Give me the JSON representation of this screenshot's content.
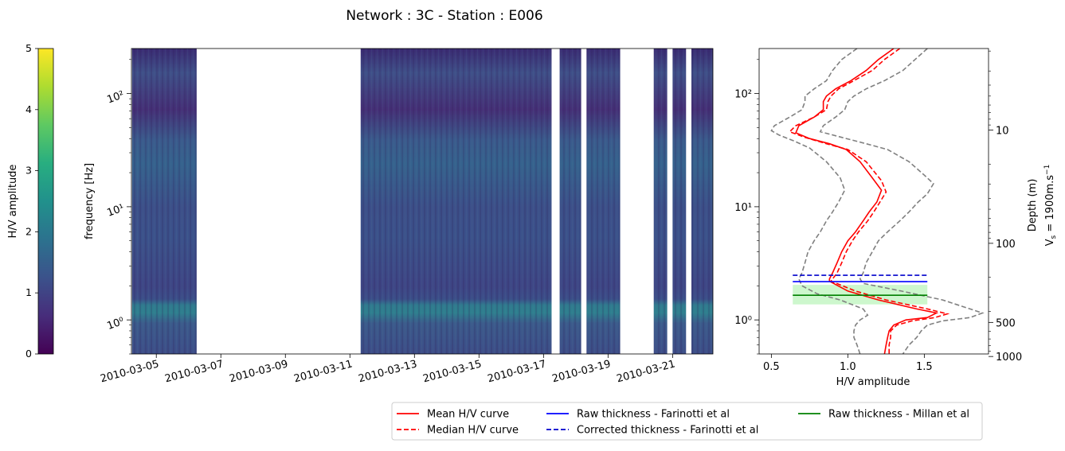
{
  "title": "Network : 3C - Station : E006",
  "colorbar": {
    "label": "H/V amplitude",
    "range": [
      0,
      5
    ],
    "ticks": [
      "0",
      "1",
      "2",
      "3",
      "4",
      "5"
    ],
    "colormap": "viridis"
  },
  "chart_data": [
    {
      "type": "heatmap",
      "name": "hv-spectrogram",
      "ylabel": "frequency [Hz]",
      "yscale": "log",
      "ylim": [
        0.5,
        250
      ],
      "ytick_labels": [
        "10⁰",
        "10¹",
        "10²"
      ],
      "xlim": [
        "2010-03-04",
        "2010-03-21"
      ],
      "xtick_labels": [
        "2010-03-05",
        "2010-03-07",
        "2010-03-09",
        "2010-03-11",
        "2010-03-13",
        "2010-03-15",
        "2010-03-17",
        "2010-03-19",
        "2010-03-21"
      ],
      "data_segments": [
        [
          "2010-03-04 06:00",
          "2010-03-06 06:00"
        ],
        [
          "2010-03-11 08:00",
          "2010-03-17 06:00"
        ],
        [
          "2010-03-17 12:00",
          "2010-03-18 04:00"
        ],
        [
          "2010-03-18 08:00",
          "2010-03-19 09:00"
        ],
        [
          "2010-03-20 10:00",
          "2010-03-20 20:00"
        ],
        [
          "2010-03-21 00:00",
          "2010-03-21 10:00"
        ],
        [
          "2010-03-21 14:00",
          "2010-03-22 06:00"
        ]
      ],
      "colorbar_range": [
        0,
        5
      ]
    },
    {
      "type": "line",
      "name": "hv-curve",
      "xlabel": "H/V amplitude",
      "xlim": [
        0.42,
        1.92
      ],
      "xtick_labels": [
        "0.5",
        "1.0",
        "1.5"
      ],
      "yscale": "log",
      "ylim": [
        0.5,
        250
      ],
      "ytick_labels": [
        "10⁰",
        "10¹",
        "10²"
      ],
      "secondary_axis": {
        "label": "Depth (m)",
        "sublabel": "V",
        "sublabel_sub": "s",
        "sublabel_rest": " = 1900m.s",
        "sublabel_sup": "−1",
        "tick_labels": [
          "10",
          "100",
          "500",
          "1000"
        ],
        "tick_values_m": [
          10,
          100,
          500,
          1000
        ]
      },
      "series": [
        {
          "name": "Mean H/V curve",
          "style": "solid",
          "color": "#ff0000",
          "points": [
            [
              1.3,
              250
            ],
            [
              1.2,
              200
            ],
            [
              1.12,
              160
            ],
            [
              1.02,
              130
            ],
            [
              0.92,
              110
            ],
            [
              0.86,
              95
            ],
            [
              0.84,
              85
            ],
            [
              0.84,
              72
            ],
            [
              0.78,
              62
            ],
            [
              0.68,
              52
            ],
            [
              0.66,
              45
            ],
            [
              0.75,
              40
            ],
            [
              0.88,
              36
            ],
            [
              0.99,
              32
            ],
            [
              1.08,
              25
            ],
            [
              1.16,
              18
            ],
            [
              1.22,
              14
            ],
            [
              1.19,
              11
            ],
            [
              1.14,
              9
            ],
            [
              1.1,
              7.5
            ],
            [
              1.05,
              6
            ],
            [
              1.0,
              5
            ],
            [
              0.96,
              4
            ],
            [
              0.93,
              3.2
            ],
            [
              0.9,
              2.6
            ],
            [
              0.88,
              2.3
            ],
            [
              0.88,
              2.2
            ],
            [
              1.0,
              1.8
            ],
            [
              1.2,
              1.5
            ],
            [
              1.45,
              1.25
            ],
            [
              1.58,
              1.15
            ],
            [
              1.52,
              1.05
            ],
            [
              1.38,
              1.0
            ],
            [
              1.3,
              0.9
            ],
            [
              1.27,
              0.8
            ],
            [
              1.26,
              0.7
            ],
            [
              1.25,
              0.6
            ],
            [
              1.24,
              0.5
            ]
          ]
        },
        {
          "name": "Median H/V curve",
          "style": "dashed",
          "color": "#ff0000",
          "points": [
            [
              1.34,
              250
            ],
            [
              1.24,
              200
            ],
            [
              1.16,
              160
            ],
            [
              1.04,
              130
            ],
            [
              0.94,
              110
            ],
            [
              0.89,
              95
            ],
            [
              0.87,
              85
            ],
            [
              0.86,
              72
            ],
            [
              0.78,
              62
            ],
            [
              0.66,
              52
            ],
            [
              0.62,
              46
            ],
            [
              0.72,
              41
            ],
            [
              0.86,
              36
            ],
            [
              1.0,
              32
            ],
            [
              1.12,
              25
            ],
            [
              1.22,
              17
            ],
            [
              1.25,
              13.5
            ],
            [
              1.21,
              11
            ],
            [
              1.17,
              9
            ],
            [
              1.13,
              7.5
            ],
            [
              1.07,
              6
            ],
            [
              1.03,
              5
            ],
            [
              0.99,
              4
            ],
            [
              0.96,
              3.2
            ],
            [
              0.93,
              2.6
            ],
            [
              0.9,
              2.3
            ],
            [
              0.89,
              2.2
            ],
            [
              1.05,
              1.8
            ],
            [
              1.25,
              1.5
            ],
            [
              1.52,
              1.25
            ],
            [
              1.65,
              1.13
            ],
            [
              1.57,
              1.05
            ],
            [
              1.42,
              0.98
            ],
            [
              1.32,
              0.9
            ],
            [
              1.28,
              0.8
            ],
            [
              1.28,
              0.7
            ],
            [
              1.27,
              0.6
            ],
            [
              1.27,
              0.5
            ]
          ]
        },
        {
          "name": "Lower bound",
          "style": "dashed",
          "color": "#808080",
          "points": [
            [
              1.06,
              250
            ],
            [
              0.96,
              200
            ],
            [
              0.9,
              160
            ],
            [
              0.86,
              130
            ],
            [
              0.78,
              110
            ],
            [
              0.72,
              95
            ],
            [
              0.72,
              85
            ],
            [
              0.7,
              72
            ],
            [
              0.62,
              62
            ],
            [
              0.52,
              52
            ],
            [
              0.5,
              47
            ],
            [
              0.55,
              43
            ],
            [
              0.65,
              38
            ],
            [
              0.75,
              33
            ],
            [
              0.86,
              25
            ],
            [
              0.95,
              18
            ],
            [
              0.98,
              14
            ],
            [
              0.94,
              11
            ],
            [
              0.9,
              9
            ],
            [
              0.86,
              7.5
            ],
            [
              0.82,
              6
            ],
            [
              0.78,
              5
            ],
            [
              0.74,
              4
            ],
            [
              0.72,
              3.2
            ],
            [
              0.7,
              2.6
            ],
            [
              0.68,
              2.3
            ],
            [
              0.7,
              2.0
            ],
            [
              0.8,
              1.7
            ],
            [
              0.95,
              1.5
            ],
            [
              1.1,
              1.25
            ],
            [
              1.13,
              1.1
            ],
            [
              1.08,
              1.0
            ],
            [
              1.05,
              0.9
            ],
            [
              1.04,
              0.8
            ],
            [
              1.04,
              0.7
            ],
            [
              1.06,
              0.6
            ],
            [
              1.08,
              0.5
            ]
          ]
        },
        {
          "name": "Upper bound",
          "style": "dashed",
          "color": "#808080",
          "points": [
            [
              1.52,
              250
            ],
            [
              1.44,
              200
            ],
            [
              1.36,
              160
            ],
            [
              1.24,
              130
            ],
            [
              1.12,
              110
            ],
            [
              1.04,
              95
            ],
            [
              1.0,
              85
            ],
            [
              0.98,
              72
            ],
            [
              0.92,
              62
            ],
            [
              0.84,
              52
            ],
            [
              0.82,
              46
            ],
            [
              0.96,
              41
            ],
            [
              1.12,
              36
            ],
            [
              1.26,
              32
            ],
            [
              1.4,
              25
            ],
            [
              1.5,
              19
            ],
            [
              1.56,
              16
            ],
            [
              1.52,
              13
            ],
            [
              1.46,
              11
            ],
            [
              1.4,
              9
            ],
            [
              1.34,
              7.5
            ],
            [
              1.26,
              6
            ],
            [
              1.2,
              5
            ],
            [
              1.16,
              4
            ],
            [
              1.12,
              3.2
            ],
            [
              1.1,
              2.6
            ],
            [
              1.08,
              2.3
            ],
            [
              1.1,
              2.1
            ],
            [
              1.35,
              1.8
            ],
            [
              1.62,
              1.5
            ],
            [
              1.88,
              1.15
            ],
            [
              1.8,
              1.05
            ],
            [
              1.62,
              0.98
            ],
            [
              1.52,
              0.9
            ],
            [
              1.48,
              0.8
            ],
            [
              1.45,
              0.7
            ],
            [
              1.4,
              0.6
            ],
            [
              1.36,
              0.5
            ]
          ]
        }
      ],
      "thickness_lines": [
        {
          "name": "Raw thickness - Farinotti et al",
          "style": "solid",
          "color": "#0000ff",
          "frequency": 2.18,
          "x_range": [
            0.64,
            1.52
          ]
        },
        {
          "name": "Corrected thickness - Farinotti et al",
          "style": "dashed",
          "color": "#0000cc",
          "frequency": 2.48,
          "x_range": [
            0.64,
            1.52
          ]
        },
        {
          "name": "Raw thickness - Millan et al",
          "style": "solid",
          "color": "#008000",
          "frequency": 1.65,
          "x_range": [
            0.64,
            1.52
          ]
        }
      ],
      "uncertainty_band": {
        "color": "#90ee90",
        "frequency_range": [
          1.37,
          2.04
        ],
        "x_range": [
          0.64,
          1.52
        ]
      }
    }
  ],
  "legend": {
    "placement": "bottom-right",
    "entries": [
      {
        "label": "Mean H/V curve",
        "color": "#ff0000",
        "style": "solid"
      },
      {
        "label": "Median H/V curve",
        "color": "#ff0000",
        "style": "dashed"
      },
      {
        "label": "Raw thickness - Farinotti et al",
        "color": "#0000ff",
        "style": "solid"
      },
      {
        "label": "Corrected thickness - Farinotti et al",
        "color": "#0000cc",
        "style": "dashed"
      },
      {
        "label": "Raw thickness - Millan et al",
        "color": "#008000",
        "style": "solid"
      }
    ]
  }
}
